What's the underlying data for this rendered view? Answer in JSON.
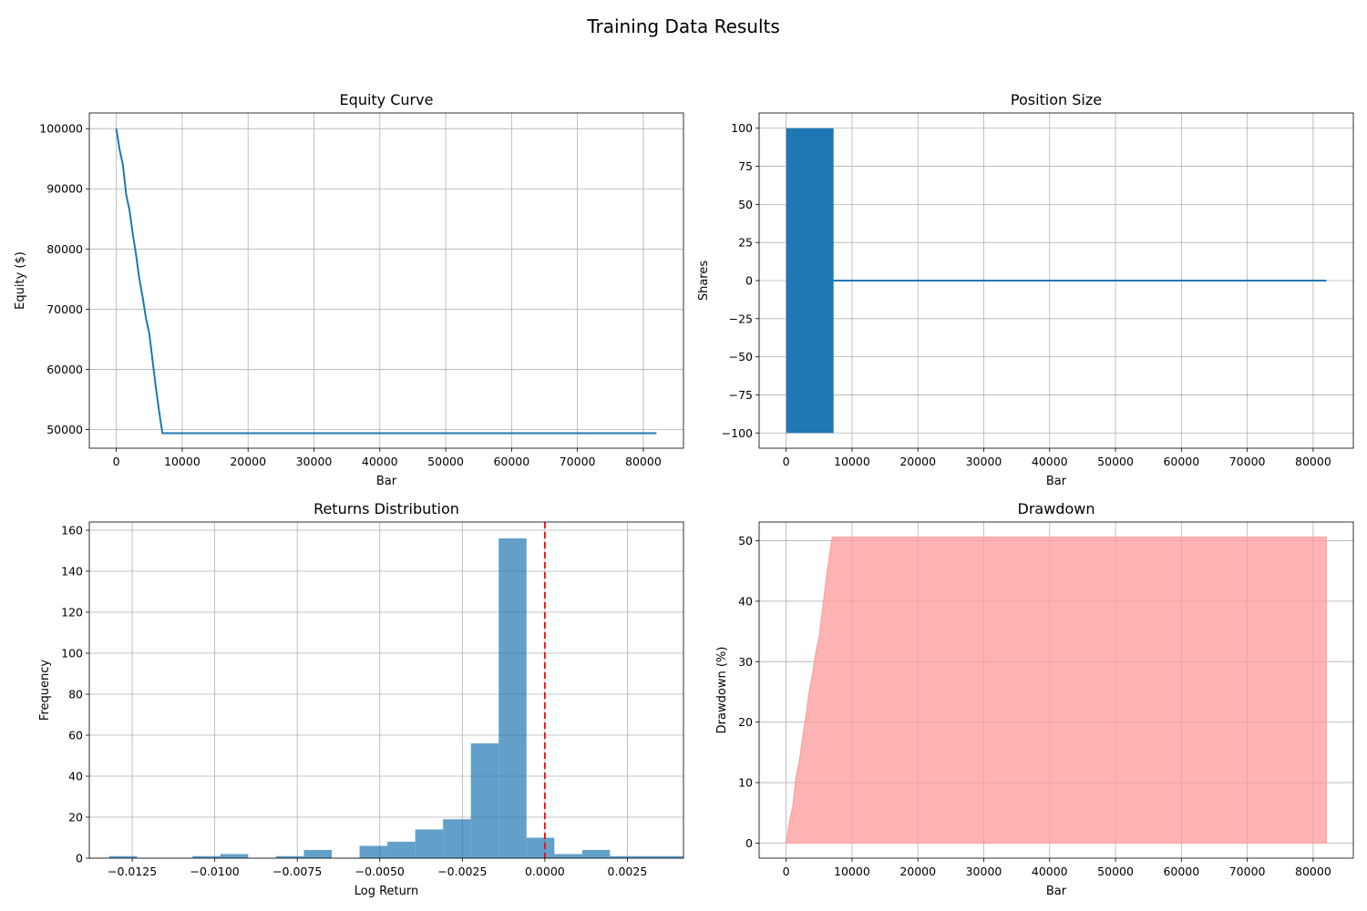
{
  "figure": {
    "suptitle": "Training Data Results"
  },
  "chart_data": [
    {
      "id": "equity",
      "type": "line",
      "title": "Equity Curve",
      "xlabel": "Bar",
      "ylabel": "Equity ($)",
      "xlim": [
        -4100,
        86100
      ],
      "ylim": [
        46900,
        102600
      ],
      "xticks": [
        0,
        10000,
        20000,
        30000,
        40000,
        50000,
        60000,
        70000,
        80000
      ],
      "yticks": [
        50000,
        60000,
        70000,
        80000,
        90000,
        100000
      ],
      "grid": true,
      "color": "#1f77b4",
      "x": [
        0,
        500,
        1000,
        1500,
        2000,
        2500,
        3000,
        3500,
        4000,
        4500,
        5000,
        5500,
        6000,
        6500,
        7000,
        7200,
        20000,
        40000,
        60000,
        82000
      ],
      "y": [
        100000,
        96500,
        94000,
        89000,
        86500,
        82500,
        79000,
        75000,
        72000,
        68500,
        66000,
        61500,
        57000,
        53000,
        49400,
        49400,
        49400,
        49400,
        49400,
        49400
      ]
    },
    {
      "id": "position",
      "type": "area",
      "title": "Position Size",
      "xlabel": "Bar",
      "ylabel": "Shares",
      "xlim": [
        -4100,
        86100
      ],
      "ylim": [
        -110,
        110
      ],
      "xticks": [
        0,
        10000,
        20000,
        30000,
        40000,
        50000,
        60000,
        70000,
        80000
      ],
      "yticks": [
        -100,
        -75,
        -50,
        -25,
        0,
        25,
        50,
        75,
        100
      ],
      "ytick_labels": [
        "−100",
        "−75",
        "−50",
        "−25",
        "0",
        "25",
        "50",
        "75",
        "100"
      ],
      "grid": true,
      "color": "#1f77b4",
      "oscillating_range": {
        "x": [
          0,
          7200
        ],
        "min": -100,
        "max": 100
      },
      "flat": {
        "x": [
          7200,
          82000
        ],
        "value": 0
      }
    },
    {
      "id": "returns",
      "type": "bar",
      "title": "Returns Distribution",
      "xlabel": "Log Return",
      "ylabel": "Frequency",
      "xlim": [
        -0.0138,
        0.0042
      ],
      "ylim": [
        0,
        164
      ],
      "xticks": [
        -0.0125,
        -0.01,
        -0.0075,
        -0.005,
        -0.0025,
        0,
        0.0025
      ],
      "xtick_labels": [
        "−0.0125",
        "−0.0100",
        "−0.0075",
        "−0.0050",
        "−0.0025",
        "0.0000",
        "0.0025"
      ],
      "yticks": [
        0,
        20,
        40,
        60,
        80,
        100,
        120,
        140,
        160
      ],
      "grid": true,
      "color": "#1f77b4",
      "bin_start": -0.0132,
      "bin_width": 0.000843,
      "values": [
        1,
        0,
        0,
        1,
        2,
        0,
        1,
        4,
        0,
        6,
        8,
        14,
        19,
        56,
        156,
        10,
        2,
        4,
        1,
        1,
        1
      ],
      "vline": {
        "x": 0,
        "color": "#ff0000"
      }
    },
    {
      "id": "drawdown",
      "type": "area",
      "title": "Drawdown",
      "xlabel": "Bar",
      "ylabel": "Drawdown (%)",
      "xlim": [
        -4100,
        86100
      ],
      "ylim": [
        -2.5,
        53.1
      ],
      "xticks": [
        0,
        10000,
        20000,
        30000,
        40000,
        50000,
        60000,
        70000,
        80000
      ],
      "yticks": [
        0,
        10,
        20,
        30,
        40,
        50
      ],
      "grid": true,
      "color": "#ff9999",
      "x": [
        0,
        500,
        1000,
        1500,
        2000,
        2500,
        3000,
        3500,
        4000,
        4500,
        5000,
        5500,
        6000,
        6500,
        7000,
        7200,
        82000
      ],
      "y": [
        0,
        3.5,
        6.0,
        11.0,
        13.5,
        17.5,
        21.0,
        25.0,
        28.0,
        31.5,
        34.0,
        38.5,
        43.0,
        47.0,
        50.6,
        50.6,
        50.6
      ]
    }
  ]
}
